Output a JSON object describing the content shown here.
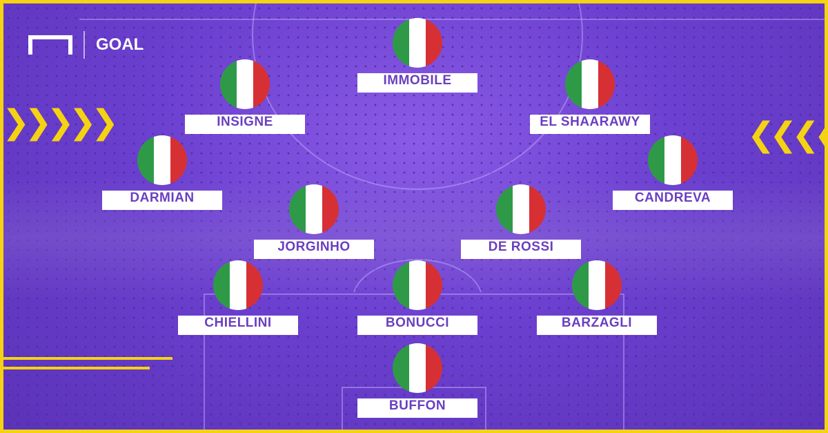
{
  "brand": {
    "name": "GOAL"
  },
  "colors": {
    "border": "#f5d312",
    "background": "#6c40d0",
    "flag_green": "#2e9a48",
    "flag_white": "#ffffff",
    "flag_red": "#d63035",
    "label_text": "#6a3fc0"
  },
  "players": [
    {
      "name": "IMMOBILE",
      "flag": "italy"
    },
    {
      "name": "INSIGNE",
      "flag": "italy"
    },
    {
      "name": "EL SHAARAWY",
      "flag": "italy"
    },
    {
      "name": "DARMIAN",
      "flag": "italy"
    },
    {
      "name": "CANDREVA",
      "flag": "italy"
    },
    {
      "name": "JORGINHO",
      "flag": "italy"
    },
    {
      "name": "DE ROSSI",
      "flag": "italy"
    },
    {
      "name": "CHIELLINI",
      "flag": "italy"
    },
    {
      "name": "BONUCCI",
      "flag": "italy"
    },
    {
      "name": "BARZAGLI",
      "flag": "italy"
    },
    {
      "name": "BUFFON",
      "flag": "italy"
    }
  ],
  "decor": {
    "left_chevrons": "❯❯❯❯❯",
    "right_chevrons": "❮❮❮❮❮"
  }
}
